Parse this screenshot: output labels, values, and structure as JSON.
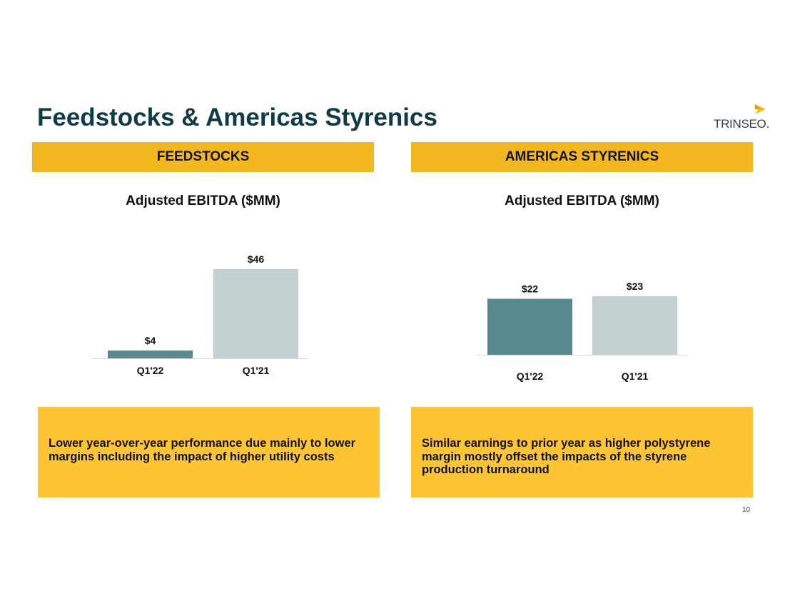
{
  "slide": {
    "title": "Feedstocks & Americas Styrenics",
    "logo_text": "TRINSEO.",
    "page_number": "10"
  },
  "colors": {
    "banner": "#f3b81f",
    "note_box": "#fdc434",
    "bar_current": "#588890",
    "bar_prior": "#c3cfd0",
    "title_text": "#0f3b46"
  },
  "sections": [
    {
      "banner": "FEEDSTOCKS",
      "chart_title": "Adjusted EBITDA ($MM)",
      "note": "Lower year-over-year performance due mainly to lower margins including the impact of higher utility costs"
    },
    {
      "banner": "AMERICAS STYRENICS",
      "chart_title": "Adjusted EBITDA ($MM)",
      "note": "Similar earnings to prior year as higher polystyrene margin mostly offset the impacts of the styrene production turnaround"
    }
  ],
  "chart_data": [
    {
      "type": "bar",
      "title": "Adjusted EBITDA ($MM)",
      "categories": [
        "Q1'22",
        "Q1'21"
      ],
      "values": [
        4,
        46
      ],
      "data_labels": [
        "$4",
        "$46"
      ],
      "ylim": [
        0,
        46
      ],
      "grid": false,
      "legend": "none"
    },
    {
      "type": "bar",
      "title": "Adjusted EBITDA ($MM)",
      "categories": [
        "Q1'22",
        "Q1'21"
      ],
      "values": [
        22,
        23
      ],
      "data_labels": [
        "$22",
        "$23"
      ],
      "ylim": [
        0,
        23
      ],
      "grid": false,
      "legend": "none"
    }
  ]
}
